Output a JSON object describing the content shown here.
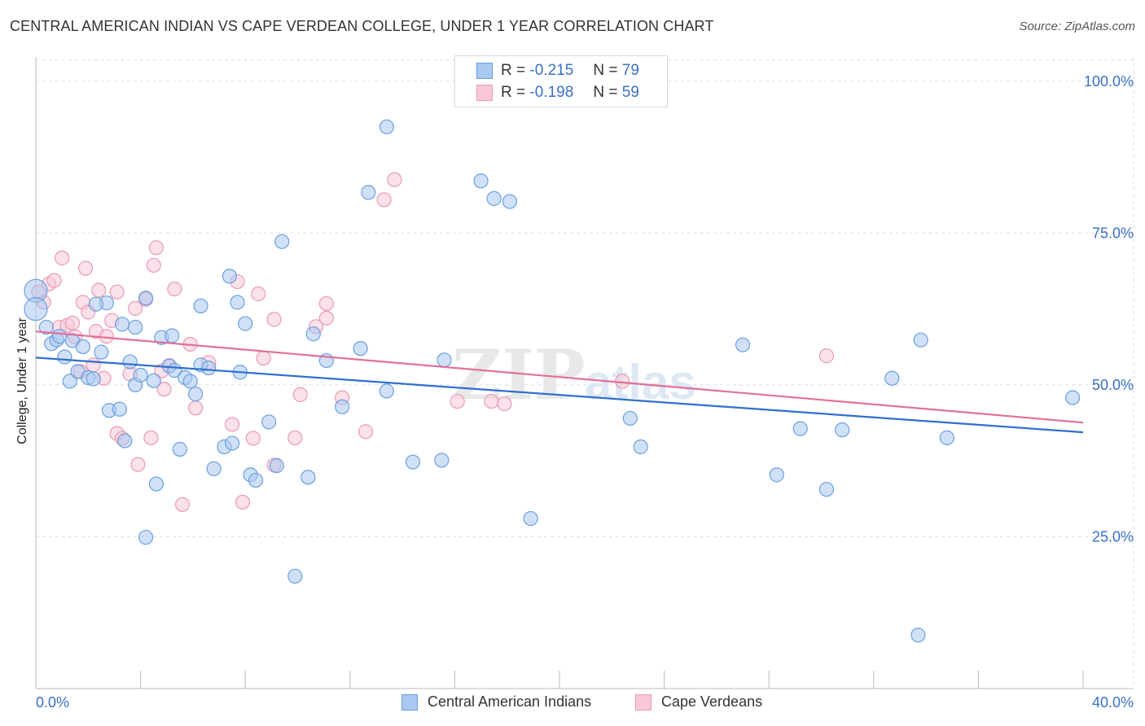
{
  "title": "CENTRAL AMERICAN INDIAN VS CAPE VERDEAN COLLEGE, UNDER 1 YEAR CORRELATION CHART",
  "source": "Source: ZipAtlas.com",
  "watermark": {
    "zip": "ZIP",
    "atlas": "atlas"
  },
  "legend": {
    "r_label": "R =",
    "n_label": "N =",
    "rows": [
      {
        "r": "-0.215",
        "n": "79",
        "color": "#a9c9f0",
        "border": "#6a9fe0"
      },
      {
        "r": "-0.198",
        "n": "59",
        "color": "#f8c8d6",
        "border": "#e89ab4"
      }
    ]
  },
  "bottom_legend": [
    "Central American Indians",
    "Cape Verdeans"
  ],
  "chart_data": {
    "type": "scatter",
    "title": "CENTRAL AMERICAN INDIAN VS CAPE VERDEAN COLLEGE, UNDER 1 YEAR CORRELATION CHART",
    "xlabel": "",
    "ylabel": "College, Under 1 year",
    "xlim": [
      0,
      40
    ],
    "ylim": [
      0,
      104
    ],
    "x_tick_labels": [
      "0.0%",
      "40.0%"
    ],
    "y_ticks": [
      25,
      50,
      75,
      100
    ],
    "y_tick_labels": [
      "25.0%",
      "50.0%",
      "75.0%",
      "100.0%"
    ],
    "grid": true,
    "legend_position": "top-center",
    "series": [
      {
        "name": "Central American Indians",
        "color": "#6a9fe0",
        "fill": "#a9c9f0",
        "trend": {
          "x": [
            0,
            40
          ],
          "y": [
            54.5,
            42.2
          ],
          "color": "#2f6fcf"
        },
        "points": [
          [
            0.0,
            65.5
          ],
          [
            0.0,
            62.5
          ],
          [
            0.4,
            59.5
          ],
          [
            0.6,
            56.8
          ],
          [
            0.8,
            57.4
          ],
          [
            0.9,
            58.0
          ],
          [
            1.1,
            54.6
          ],
          [
            1.3,
            50.6
          ],
          [
            1.4,
            57.3
          ],
          [
            1.6,
            52.2
          ],
          [
            1.8,
            56.3
          ],
          [
            2.0,
            51.2
          ],
          [
            2.2,
            51.0
          ],
          [
            2.5,
            55.4
          ],
          [
            2.7,
            63.5
          ],
          [
            2.8,
            45.8
          ],
          [
            2.3,
            63.3
          ],
          [
            3.2,
            46.0
          ],
          [
            3.3,
            60.0
          ],
          [
            3.4,
            40.8
          ],
          [
            3.6,
            53.8
          ],
          [
            3.8,
            50.0
          ],
          [
            3.8,
            59.5
          ],
          [
            4.2,
            64.3
          ],
          [
            4.0,
            51.6
          ],
          [
            4.2,
            24.9
          ],
          [
            4.5,
            50.7
          ],
          [
            4.6,
            33.7
          ],
          [
            4.8,
            57.8
          ],
          [
            5.1,
            53.1
          ],
          [
            5.2,
            58.1
          ],
          [
            5.3,
            52.4
          ],
          [
            5.5,
            39.4
          ],
          [
            5.7,
            51.2
          ],
          [
            5.9,
            50.6
          ],
          [
            6.1,
            48.5
          ],
          [
            6.3,
            53.3
          ],
          [
            6.3,
            63.0
          ],
          [
            6.6,
            52.8
          ],
          [
            6.8,
            36.2
          ],
          [
            7.2,
            39.8
          ],
          [
            7.4,
            67.9
          ],
          [
            7.5,
            40.4
          ],
          [
            7.7,
            63.6
          ],
          [
            7.8,
            52.1
          ],
          [
            8.0,
            60.1
          ],
          [
            8.2,
            35.2
          ],
          [
            8.4,
            34.3
          ],
          [
            8.9,
            43.9
          ],
          [
            9.2,
            36.7
          ],
          [
            9.4,
            73.6
          ],
          [
            9.9,
            18.5
          ],
          [
            10.4,
            34.8
          ],
          [
            10.6,
            58.4
          ],
          [
            11.1,
            54.0
          ],
          [
            11.7,
            46.4
          ],
          [
            12.4,
            56.0
          ],
          [
            12.7,
            81.7
          ],
          [
            13.4,
            92.5
          ],
          [
            13.4,
            49.0
          ],
          [
            14.4,
            37.3
          ],
          [
            15.5,
            37.6
          ],
          [
            15.6,
            54.1
          ],
          [
            17.0,
            83.6
          ],
          [
            17.5,
            80.7
          ],
          [
            18.1,
            80.2
          ],
          [
            18.9,
            28.0
          ],
          [
            22.7,
            44.5
          ],
          [
            23.1,
            39.8
          ],
          [
            27.0,
            56.6
          ],
          [
            28.3,
            35.2
          ],
          [
            29.2,
            42.8
          ],
          [
            30.2,
            32.8
          ],
          [
            30.8,
            42.6
          ],
          [
            32.7,
            51.1
          ],
          [
            33.7,
            8.8
          ],
          [
            33.8,
            57.4
          ],
          [
            34.8,
            41.3
          ],
          [
            39.6,
            47.9
          ]
        ]
      },
      {
        "name": "Cape Verdeans",
        "color": "#e89ab4",
        "fill": "#f8c8d6",
        "trend": {
          "x": [
            0,
            40
          ],
          "y": [
            58.8,
            43.8
          ],
          "color": "#e0709a"
        },
        "points": [
          [
            0.1,
            65.3
          ],
          [
            0.3,
            63.6
          ],
          [
            0.5,
            66.6
          ],
          [
            0.7,
            67.2
          ],
          [
            0.9,
            59.5
          ],
          [
            1.0,
            70.9
          ],
          [
            1.2,
            59.8
          ],
          [
            1.4,
            60.2
          ],
          [
            1.5,
            57.9
          ],
          [
            1.7,
            52.2
          ],
          [
            1.8,
            63.6
          ],
          [
            1.9,
            69.2
          ],
          [
            2.0,
            62.0
          ],
          [
            2.2,
            53.3
          ],
          [
            2.3,
            58.8
          ],
          [
            2.4,
            65.6
          ],
          [
            2.6,
            51.1
          ],
          [
            2.7,
            58.0
          ],
          [
            2.9,
            60.6
          ],
          [
            3.1,
            65.3
          ],
          [
            3.1,
            42.0
          ],
          [
            3.3,
            41.2
          ],
          [
            3.6,
            51.8
          ],
          [
            3.8,
            62.6
          ],
          [
            3.9,
            36.9
          ],
          [
            4.2,
            64.1
          ],
          [
            4.4,
            41.3
          ],
          [
            4.5,
            69.7
          ],
          [
            4.6,
            72.6
          ],
          [
            4.8,
            52.3
          ],
          [
            4.9,
            49.3
          ],
          [
            5.1,
            53.2
          ],
          [
            5.3,
            65.8
          ],
          [
            5.6,
            30.3
          ],
          [
            5.9,
            56.7
          ],
          [
            6.1,
            46.2
          ],
          [
            6.6,
            53.7
          ],
          [
            7.5,
            43.5
          ],
          [
            7.7,
            67.0
          ],
          [
            7.9,
            30.7
          ],
          [
            8.3,
            41.2
          ],
          [
            8.5,
            65.0
          ],
          [
            8.7,
            54.4
          ],
          [
            9.1,
            60.8
          ],
          [
            9.1,
            36.8
          ],
          [
            9.9,
            41.3
          ],
          [
            10.1,
            48.4
          ],
          [
            10.7,
            59.6
          ],
          [
            11.1,
            61.0
          ],
          [
            11.1,
            63.4
          ],
          [
            11.7,
            47.9
          ],
          [
            12.6,
            42.3
          ],
          [
            13.7,
            83.8
          ],
          [
            13.3,
            80.5
          ],
          [
            16.1,
            47.3
          ],
          [
            17.4,
            47.3
          ],
          [
            17.9,
            46.9
          ],
          [
            22.4,
            50.6
          ],
          [
            30.2,
            54.8
          ]
        ]
      }
    ]
  }
}
